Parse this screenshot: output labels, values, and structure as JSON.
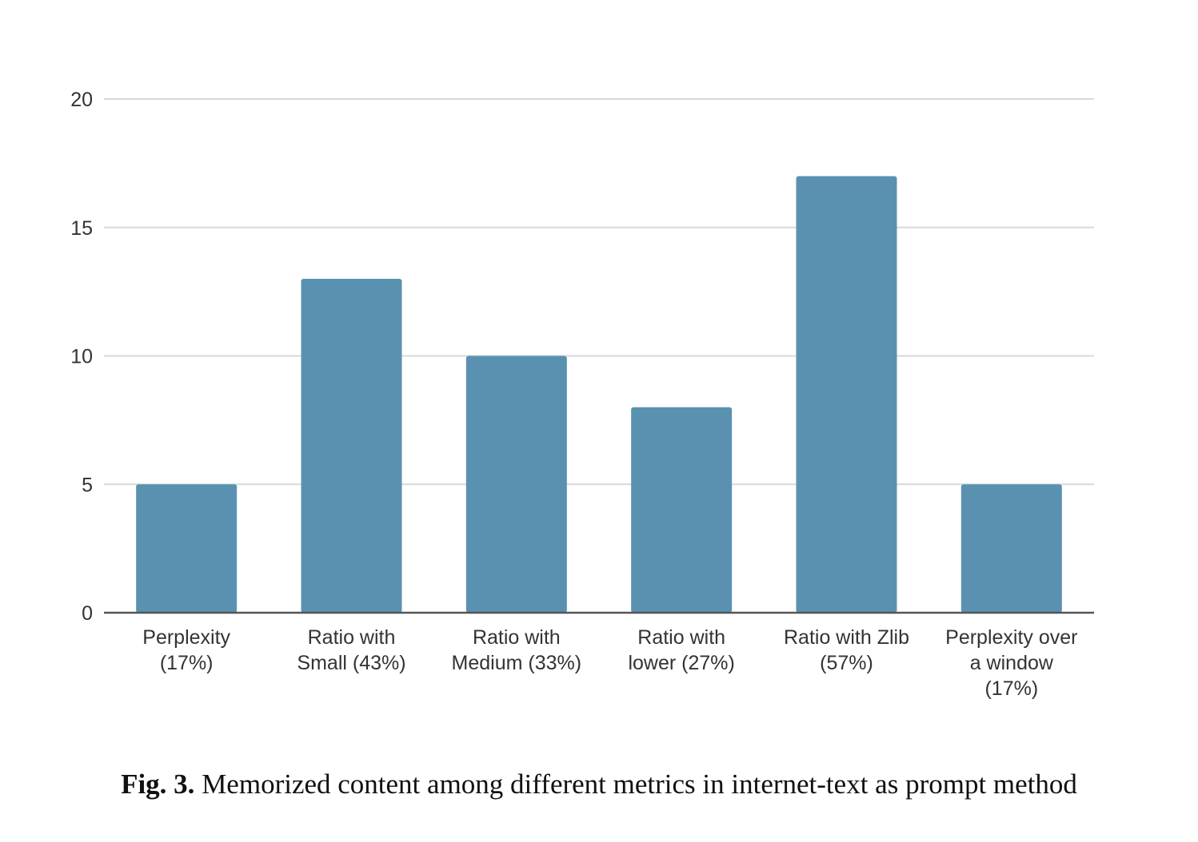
{
  "chart_data": {
    "type": "bar",
    "categories": [
      [
        "Perplexity",
        "(17%)"
      ],
      [
        "Ratio with",
        "Small (43%)"
      ],
      [
        "Ratio with",
        "Medium (33%)"
      ],
      [
        "Ratio with",
        "lower (27%)"
      ],
      [
        "Ratio with Zlib",
        "(57%)"
      ],
      [
        "Perplexity over",
        "a window",
        "(17%)"
      ]
    ],
    "values": [
      5,
      13,
      10,
      8,
      17,
      5
    ],
    "ylim": [
      0,
      20
    ],
    "yticks": [
      0,
      5,
      10,
      15,
      20
    ],
    "grid": true,
    "bar_color": "#5a91b0",
    "grid_color": "#d9d9d9",
    "axis_color": "#555555"
  },
  "caption": {
    "label": "Fig. 3.",
    "text": "Memorized content among different metrics in internet-text as prompt method"
  }
}
